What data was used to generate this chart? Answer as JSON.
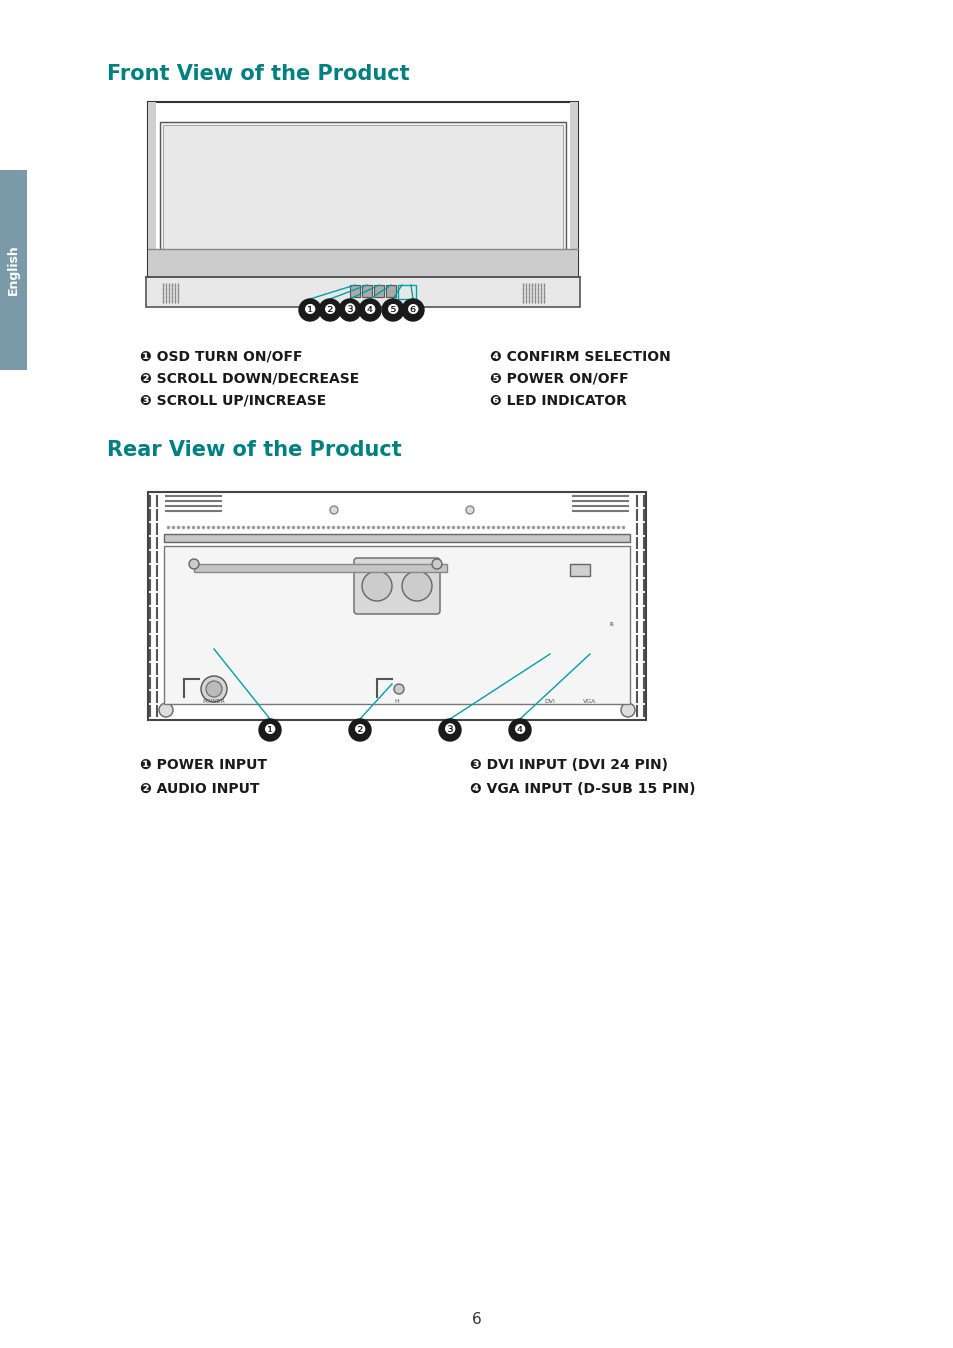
{
  "title": "Front View of the Product",
  "title2": "Rear View of the Product",
  "title_color": "#008080",
  "bg_color": "#ffffff",
  "english_tab_color": "#7a9aaa",
  "english_tab_text": "English",
  "front_labels_left": [
    "❶ OSD TURN ON/OFF",
    "❷ SCROLL DOWN/DECREASE",
    "❸ SCROLL UP/INCREASE"
  ],
  "front_labels_right": [
    "❹ CONFIRM SELECTION",
    "❺ POWER ON/OFF",
    "❻ LED INDICATOR"
  ],
  "rear_labels_left": [
    "❶ POWER INPUT",
    "❷ AUDIO INPUT"
  ],
  "rear_labels_right": [
    "❸ DVI INPUT (DVI 24 PIN)",
    "❹ VGA INPUT (D-SUB 15 PIN)"
  ],
  "page_number": "6",
  "cyan_color": "#00A0A8",
  "dark_color": "#1a1a1a",
  "line_color": "#444444",
  "gray_line": "#666666"
}
